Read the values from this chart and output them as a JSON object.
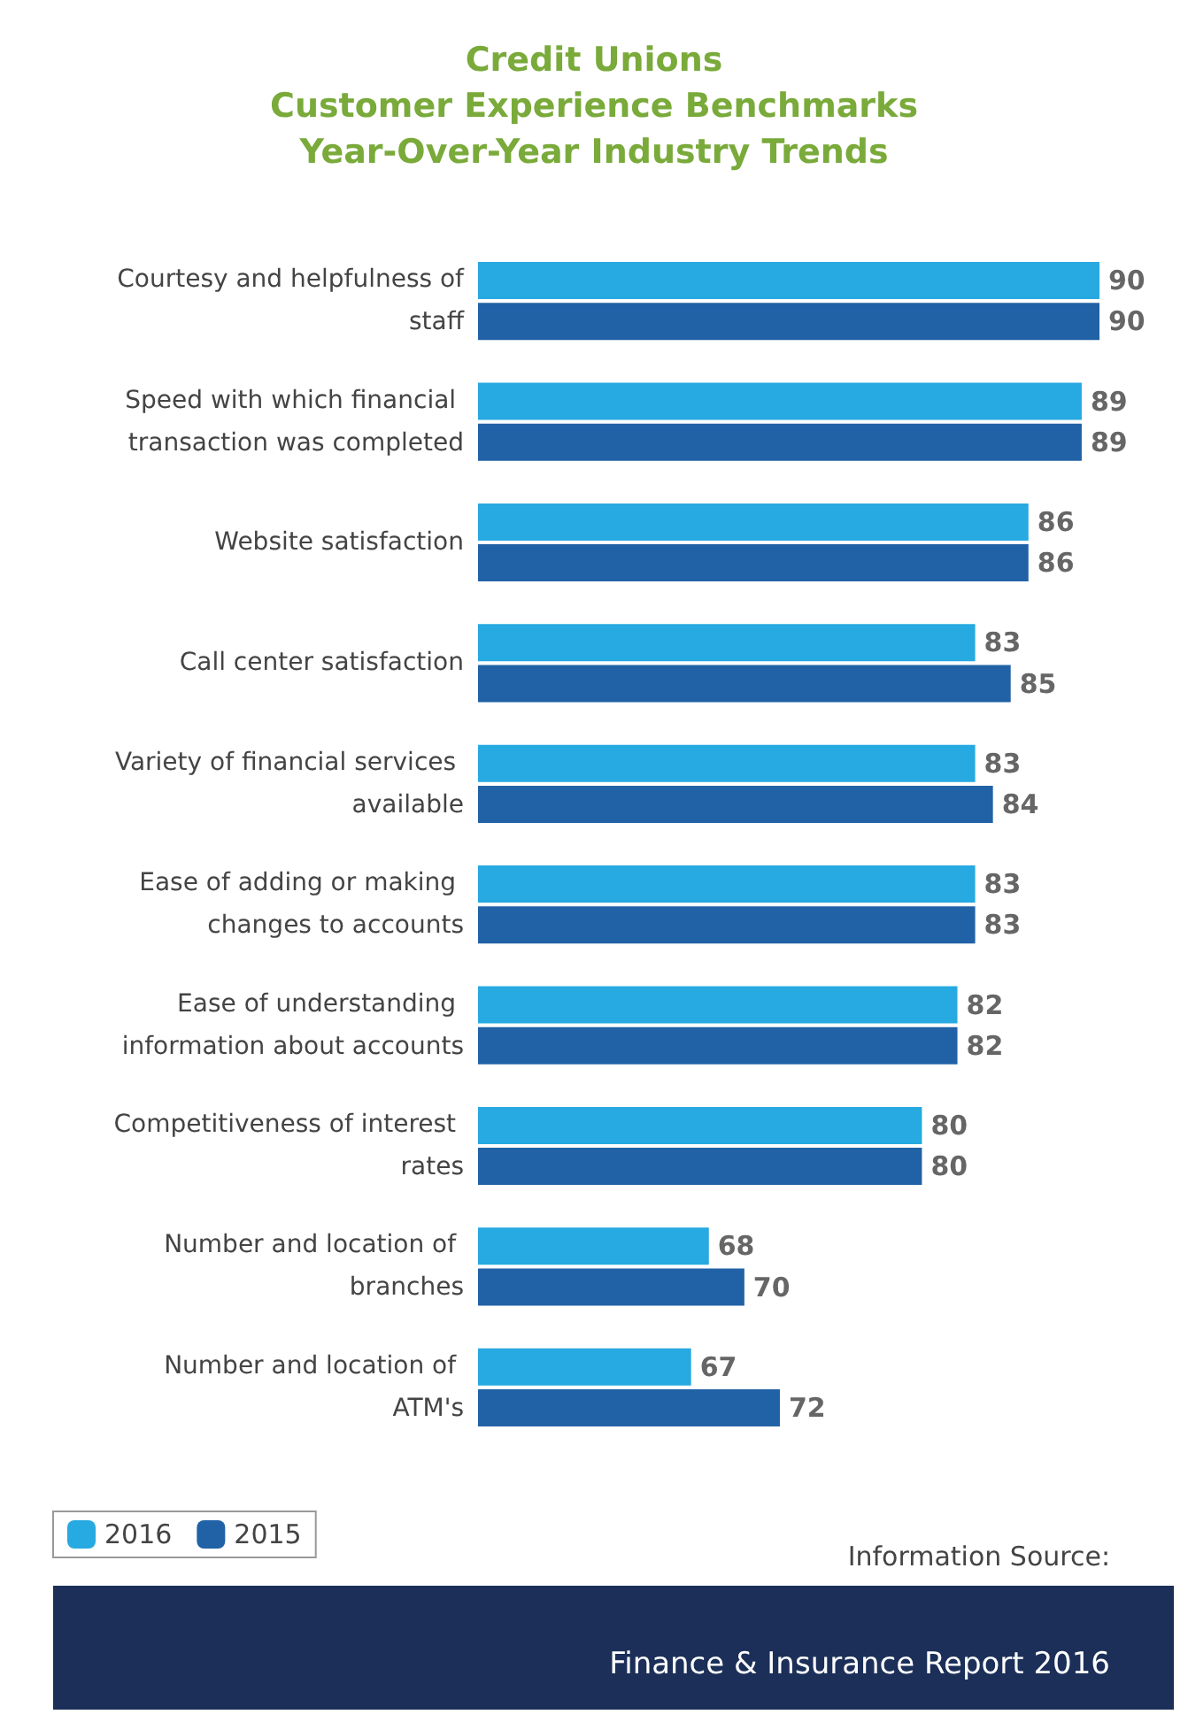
{
  "chart_data": {
    "type": "bar",
    "orientation": "horizontal",
    "title": "Credit Unions\nCustomer Experience Benchmarks\nYear-Over-Year Industry Trends",
    "categories": [
      "Courtesy and helpfulness of staff",
      "Speed with which financial transaction was completed",
      "Website satisfaction",
      "Call center satisfaction",
      "Variety of financial services available",
      "Ease of adding or making changes to accounts",
      "Ease of understanding information about accounts",
      "Competitiveness of interest rates",
      "Number and location of branches",
      "Number and location of ATM's"
    ],
    "series": [
      {
        "name": "2016",
        "color": "#27a9e1",
        "values": [
          90,
          89,
          86,
          83,
          83,
          83,
          82,
          80,
          68,
          67
        ]
      },
      {
        "name": "2015",
        "color": "#2162a6",
        "values": [
          90,
          89,
          86,
          85,
          84,
          83,
          82,
          80,
          70,
          72
        ]
      }
    ],
    "xlim": [
      55,
      90
    ],
    "data_labels": true,
    "legend": "bottom left",
    "annotations": [
      "Information Source:",
      "Finance & Insurance Report 2016"
    ]
  }
}
